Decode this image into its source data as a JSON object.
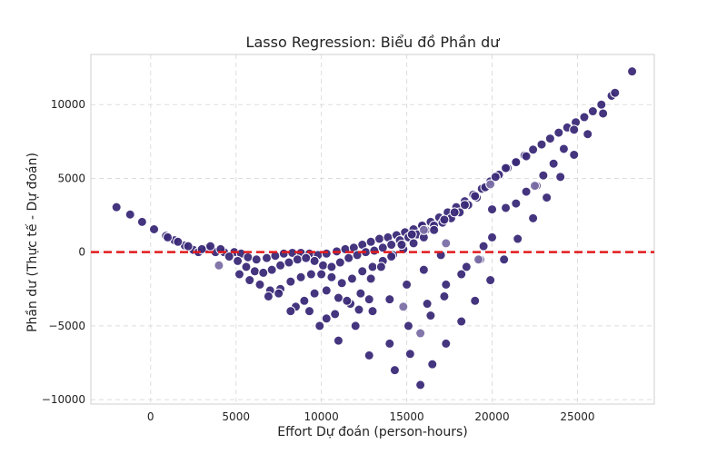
{
  "chart_data": {
    "type": "scatter",
    "title": "Lasso Regression: Biểu đồ Phần dư",
    "xlabel": "Effort Dự đoán (person-hours)",
    "ylabel": "Phần dư (Thực tế - Dự đoán)",
    "xlim": [
      -3500,
      29500
    ],
    "ylim": [
      -10300,
      13400
    ],
    "xticks": [
      0,
      5000,
      10000,
      15000,
      20000,
      25000
    ],
    "yticks": [
      -10000,
      -5000,
      0,
      5000,
      10000
    ],
    "xtick_labels": [
      "0",
      "5000",
      "10000",
      "15000",
      "20000",
      "25000"
    ],
    "ytick_labels": [
      "−10000",
      "−5000",
      "0",
      "5000",
      "10000"
    ],
    "grid": true,
    "zero_line": {
      "y": 0,
      "color": "#e31a1c",
      "style": "dashed"
    },
    "point_color": "#3b2a78",
    "point_color_light": "#7b6fa5",
    "points": [
      [
        -2000,
        3050
      ],
      [
        -1200,
        2550
      ],
      [
        -500,
        2050
      ],
      [
        200,
        1550
      ],
      [
        900,
        1100
      ],
      [
        1400,
        800
      ],
      [
        2000,
        450
      ],
      [
        2500,
        150
      ],
      [
        2800,
        0
      ],
      [
        3300,
        250
      ],
      [
        3800,
        0
      ],
      [
        4300,
        0
      ],
      [
        4900,
        0
      ],
      [
        5300,
        -100
      ],
      [
        5700,
        -350
      ],
      [
        6200,
        -500
      ],
      [
        6800,
        -400
      ],
      [
        7300,
        -250
      ],
      [
        7800,
        -100
      ],
      [
        8300,
        -50
      ],
      [
        8800,
        -50
      ],
      [
        9300,
        -100
      ],
      [
        9800,
        -200
      ],
      [
        10300,
        -100
      ],
      [
        10900,
        50
      ],
      [
        11400,
        200
      ],
      [
        11900,
        300
      ],
      [
        12400,
        500
      ],
      [
        12900,
        700
      ],
      [
        13400,
        900
      ],
      [
        13900,
        1000
      ],
      [
        14400,
        1150
      ],
      [
        14900,
        1350
      ],
      [
        15400,
        1550
      ],
      [
        15900,
        1800
      ],
      [
        16400,
        2050
      ],
      [
        16900,
        2350
      ],
      [
        17400,
        2700
      ],
      [
        17900,
        3050
      ],
      [
        18400,
        3450
      ],
      [
        18900,
        3900
      ],
      [
        19400,
        4300
      ],
      [
        19900,
        4800
      ],
      [
        20400,
        5250
      ],
      [
        20900,
        5700
      ],
      [
        21400,
        6150
      ],
      [
        21900,
        6550
      ],
      [
        22400,
        6950
      ],
      [
        22900,
        7300
      ],
      [
        23400,
        7700
      ],
      [
        23900,
        8100
      ],
      [
        24400,
        8450
      ],
      [
        24900,
        8800
      ],
      [
        25400,
        9150
      ],
      [
        25900,
        9550
      ],
      [
        26400,
        10000
      ],
      [
        27000,
        10600
      ],
      [
        28200,
        12250
      ],
      [
        1000,
        1000
      ],
      [
        1600,
        700
      ],
      [
        2200,
        400
      ],
      [
        3000,
        200
      ],
      [
        3500,
        400
      ],
      [
        4100,
        200
      ],
      [
        4600,
        -300
      ],
      [
        5100,
        -600
      ],
      [
        5600,
        -1000
      ],
      [
        6100,
        -1300
      ],
      [
        6600,
        -1400
      ],
      [
        7100,
        -1200
      ],
      [
        7600,
        -900
      ],
      [
        8100,
        -700
      ],
      [
        8600,
        -500
      ],
      [
        9100,
        -400
      ],
      [
        9600,
        -600
      ],
      [
        10100,
        -900
      ],
      [
        10600,
        -1000
      ],
      [
        11100,
        -700
      ],
      [
        11600,
        -400
      ],
      [
        12100,
        -200
      ],
      [
        12600,
        0
      ],
      [
        13100,
        100
      ],
      [
        13600,
        300
      ],
      [
        14100,
        500
      ],
      [
        14600,
        800
      ],
      [
        15100,
        1000
      ],
      [
        15600,
        1200
      ],
      [
        16100,
        1500
      ],
      [
        16600,
        1800
      ],
      [
        17100,
        2000
      ],
      [
        17600,
        2300
      ],
      [
        18100,
        2700
      ],
      [
        18600,
        3200
      ],
      [
        19100,
        3700
      ],
      [
        5200,
        -1500
      ],
      [
        5800,
        -1900
      ],
      [
        6400,
        -2200
      ],
      [
        7000,
        -2600
      ],
      [
        7600,
        -2500
      ],
      [
        8200,
        -2000
      ],
      [
        8800,
        -1700
      ],
      [
        9400,
        -1500
      ],
      [
        10000,
        -1500
      ],
      [
        10600,
        -1700
      ],
      [
        11200,
        -2100
      ],
      [
        11800,
        -1800
      ],
      [
        12400,
        -1300
      ],
      [
        13000,
        -1000
      ],
      [
        13600,
        -600
      ],
      [
        14200,
        -200
      ],
      [
        14800,
        200
      ],
      [
        15400,
        600
      ],
      [
        16000,
        1000
      ],
      [
        16600,
        1500
      ],
      [
        17200,
        2200
      ],
      [
        17800,
        2700
      ],
      [
        18400,
        3200
      ],
      [
        19000,
        3800
      ],
      [
        19600,
        4400
      ],
      [
        20200,
        5100
      ],
      [
        20800,
        5700
      ],
      [
        21400,
        6100
      ],
      [
        22000,
        6500
      ],
      [
        6900,
        -3000
      ],
      [
        7500,
        -2800
      ],
      [
        8500,
        -3700
      ],
      [
        9000,
        -3300
      ],
      [
        9600,
        -2800
      ],
      [
        10300,
        -2600
      ],
      [
        11000,
        -3100
      ],
      [
        11700,
        -3500
      ],
      [
        12300,
        -2800
      ],
      [
        12900,
        -1800
      ],
      [
        13500,
        -1000
      ],
      [
        14100,
        -300
      ],
      [
        14700,
        500
      ],
      [
        15300,
        1200
      ],
      [
        15900,
        1800
      ],
      [
        8200,
        -4000
      ],
      [
        9300,
        -4000
      ],
      [
        9900,
        -5000
      ],
      [
        10300,
        -4500
      ],
      [
        10800,
        -4200
      ],
      [
        11500,
        -3300
      ],
      [
        12200,
        -3900
      ],
      [
        12800,
        -3200
      ],
      [
        11000,
        -6000
      ],
      [
        12000,
        -5000
      ],
      [
        13000,
        -4000
      ],
      [
        14000,
        -3200
      ],
      [
        15000,
        -2200
      ],
      [
        16000,
        -1200
      ],
      [
        17000,
        -200
      ],
      [
        12800,
        -7000
      ],
      [
        14000,
        -6200
      ],
      [
        15100,
        -5000
      ],
      [
        16200,
        -3500
      ],
      [
        17300,
        -2200
      ],
      [
        18500,
        -1000
      ],
      [
        19500,
        400
      ],
      [
        14300,
        -8000
      ],
      [
        15200,
        -6900
      ],
      [
        16400,
        -4300
      ],
      [
        17200,
        -3000
      ],
      [
        18200,
        -1500
      ],
      [
        19300,
        -500
      ],
      [
        20000,
        1000
      ],
      [
        15800,
        -9000
      ],
      [
        16500,
        -7600
      ],
      [
        17300,
        -6200
      ],
      [
        18200,
        -4700
      ],
      [
        19000,
        -3300
      ],
      [
        19900,
        -1900
      ],
      [
        20700,
        -500
      ],
      [
        21500,
        900
      ],
      [
        22400,
        2300
      ],
      [
        23200,
        3700
      ],
      [
        24000,
        5100
      ],
      [
        24800,
        6600
      ],
      [
        25600,
        8000
      ],
      [
        26500,
        9400
      ],
      [
        27200,
        10800
      ],
      [
        20000,
        2900
      ],
      [
        20800,
        3000
      ],
      [
        21400,
        3300
      ],
      [
        22000,
        4100
      ],
      [
        22600,
        4500
      ],
      [
        23000,
        5200
      ],
      [
        23600,
        6000
      ],
      [
        24200,
        7000
      ],
      [
        24800,
        8300
      ]
    ],
    "light_points": [
      [
        4000,
        -900
      ],
      [
        14800,
        -3700
      ],
      [
        15800,
        -5500
      ],
      [
        17300,
        600
      ],
      [
        19200,
        -500
      ],
      [
        22500,
        4500
      ],
      [
        19900,
        4600
      ],
      [
        16000,
        1500
      ]
    ]
  }
}
